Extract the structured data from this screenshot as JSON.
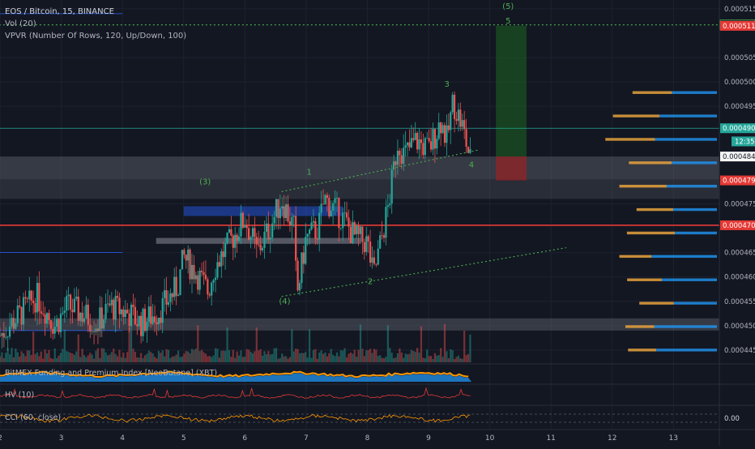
{
  "header": {
    "symbol_line": "EOS / Bitcoin, 15, BINANCE",
    "vol_indicator": "Vol (20)",
    "vpvr_indicator": "VPVR (Number Of Rows, 120, Up/Down, 100)"
  },
  "panes": {
    "funding": "BitMEX Funding and Premium Index [NeoButane] (XBT)",
    "hv": "HV (10)",
    "cci": "CCI (60, close)",
    "cci_value": "0.00"
  },
  "colors": {
    "background": "#131722",
    "up": "#26a69a",
    "down": "#ef5350",
    "wave_label": "#4caf50",
    "vpvr_up": "#2196f3",
    "vpvr_down": "#e6a23c",
    "target_zone": "#1b5e20",
    "stop_zone": "#b71c1c"
  },
  "chart_data": {
    "type": "candlestick",
    "price_axis": {
      "ticks": [
        "0.0005150",
        "0.0005050",
        "0.0005000",
        "0.0004950",
        "0.0004750",
        "0.0004650",
        "0.0004600",
        "0.0004550",
        "0.0004500",
        "0.0004450"
      ],
      "range": [
        0.0004425,
        0.0005168
      ]
    },
    "price_labels": [
      {
        "value": 0.0005117,
        "text": "0.0005117",
        "color": "#1e222d",
        "text_color": "#4caf50",
        "border": "#4caf50"
      },
      {
        "value": 0.0005115,
        "text": "0.0005115",
        "color": "#e53935",
        "text_color": "#ffffff"
      },
      {
        "value": 0.0004905,
        "text": "0.0004905",
        "color": "#26a69a",
        "text_color": "#ffffff"
      },
      {
        "value": 0.0004847,
        "text": "0.0004847",
        "color": "#f5f5f5",
        "text_color": "#131722"
      },
      {
        "value": 0.0004798,
        "text": "0.0004798",
        "color": "#e53935",
        "text_color": "#ffffff"
      },
      {
        "value": 0.0004706,
        "text": "0.0004706",
        "color": "#e53935",
        "text_color": "#ffffff"
      }
    ],
    "countdown": "12:35",
    "time_axis": [
      {
        "label": "2",
        "day": 2
      },
      {
        "label": "3",
        "day": 3
      },
      {
        "label": "4",
        "day": 4
      },
      {
        "label": "5",
        "day": 5
      },
      {
        "label": "6",
        "day": 6
      },
      {
        "label": "7",
        "day": 7
      },
      {
        "label": "8",
        "day": 8
      },
      {
        "label": "9",
        "day": 9
      },
      {
        "label": "10",
        "day": 10
      },
      {
        "label": "11",
        "day": 11
      },
      {
        "label": "12",
        "day": 12
      },
      {
        "label": "13",
        "day": 13
      }
    ],
    "time_range": [
      2.0,
      13.75
    ],
    "close_path": [
      [
        2.0,
        0.000448
      ],
      [
        2.3,
        0.000452
      ],
      [
        2.6,
        0.000456
      ],
      [
        2.9,
        0.00045
      ],
      [
        3.1,
        0.000454
      ],
      [
        3.4,
        0.000452
      ],
      [
        3.6,
        0.0004505
      ],
      [
        3.8,
        0.000454
      ],
      [
        4.1,
        0.0004525
      ],
      [
        4.3,
        0.0004505
      ],
      [
        4.6,
        0.000453
      ],
      [
        4.9,
        0.000458
      ],
      [
        5.0,
        0.000464
      ],
      [
        5.2,
        0.000461
      ],
      [
        5.4,
        0.000457
      ],
      [
        5.5,
        0.000462
      ],
      [
        5.8,
        0.000468
      ],
      [
        6.0,
        0.000472
      ],
      [
        6.2,
        0.000465
      ],
      [
        6.4,
        0.00047
      ],
      [
        6.6,
        0.000476
      ],
      [
        6.8,
        0.00047
      ],
      [
        6.85,
        0.000456
      ],
      [
        7.0,
        0.000468
      ],
      [
        7.2,
        0.00047
      ],
      [
        7.3,
        0.000476
      ],
      [
        7.6,
        0.000472
      ],
      [
        7.8,
        0.000468
      ],
      [
        8.0,
        0.000467
      ],
      [
        8.1,
        0.00046
      ],
      [
        8.2,
        0.000466
      ],
      [
        8.35,
        0.000475
      ],
      [
        8.5,
        0.000488
      ],
      [
        8.6,
        0.000485
      ],
      [
        8.8,
        0.000488
      ],
      [
        9.0,
        0.000486
      ],
      [
        9.2,
        0.000492
      ],
      [
        9.3,
        0.000488
      ],
      [
        9.4,
        0.000496
      ],
      [
        9.55,
        0.000491
      ],
      [
        9.7,
        0.000483
      ]
    ],
    "elliott_waves": [
      {
        "label": "(3)",
        "day": 5.35,
        "price": 0.000479
      },
      {
        "label": "(4)",
        "day": 6.65,
        "price": 0.0004545
      },
      {
        "label": "(5)",
        "day": 10.3,
        "price": 0.000515
      },
      {
        "label": "5",
        "day": 10.3,
        "price": 0.000512
      },
      {
        "label": "1",
        "day": 7.05,
        "price": 0.000481
      },
      {
        "label": "2",
        "day": 8.05,
        "price": 0.0004585
      },
      {
        "label": "3",
        "day": 9.3,
        "price": 0.000499
      },
      {
        "label": "4",
        "day": 9.7,
        "price": 0.0004825
      }
    ],
    "trendlines": [
      {
        "from": [
          6.6,
          0.0004775
        ],
        "to": [
          9.8,
          0.000486
        ]
      },
      {
        "from": [
          6.6,
          0.000456
        ],
        "to": [
          11.25,
          0.000466
        ]
      },
      {
        "from": [
          0,
          0.0005117
        ],
        "to": [
          13.75,
          0.0005117
        ]
      }
    ],
    "zones": [
      {
        "kind": "gray-band",
        "price_from": 0.00048,
        "price_to": 0.0004847,
        "day_from": 2.0,
        "day_to": 13.75
      },
      {
        "kind": "gray-band-dark",
        "price_from": 0.000476,
        "price_to": 0.00048,
        "day_from": 2.0,
        "day_to": 13.75
      },
      {
        "kind": "gray-band",
        "price_from": 0.000449,
        "price_to": 0.0004515,
        "day_from": 2.0,
        "day_to": 13.75
      },
      {
        "kind": "blue-box",
        "price_from": 0.0004725,
        "price_to": 0.0004745,
        "day_from": 5.0,
        "day_to": 7.6
      },
      {
        "kind": "gray-box",
        "price_from": 0.0004668,
        "price_to": 0.000468,
        "day_from": 4.55,
        "day_to": 7.9
      },
      {
        "kind": "target",
        "price_from": 0.0004847,
        "price_to": 0.0005115,
        "day_from": 10.1,
        "day_to": 10.6
      },
      {
        "kind": "stop",
        "price_from": 0.0004798,
        "price_to": 0.0004847,
        "day_from": 10.1,
        "day_to": 10.6
      }
    ],
    "hlines": [
      {
        "price": 0.0004706,
        "color": "#e53935",
        "width": 1.6
      },
      {
        "price": 0.0004905,
        "color": "#26a69a",
        "width": 0.8
      },
      {
        "price": 0.000465,
        "color": "#2962ff",
        "width": 0.8,
        "day_to": 4.0
      },
      {
        "price": 0.000514,
        "color": "#2962ff",
        "width": 0.8,
        "day_to": 4.0
      },
      {
        "price": 0.000449,
        "color": "#2962ff",
        "width": 0.8,
        "day_to": 4.0
      }
    ]
  }
}
